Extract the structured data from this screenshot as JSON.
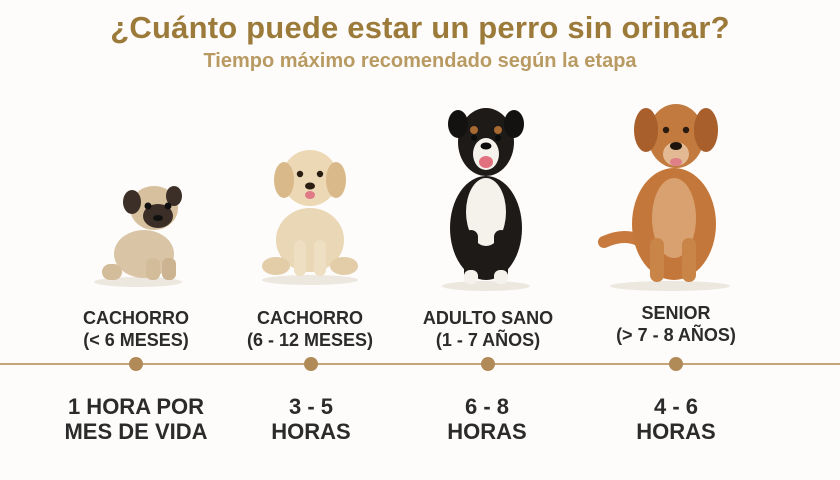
{
  "title": "¿Cuánto puede estar un perro sin orinar?",
  "subtitle": "Tiempo máximo recomendado según la etapa",
  "colors": {
    "title": "#9b7a3a",
    "subtitle": "#b89a62",
    "timeline": "#c4a57a",
    "dot": "#b08a57"
  },
  "stages": [
    {
      "label_line1": "CACHORRO",
      "label_line2": "(< 6 MESES)",
      "value_line1": "1 HORA POR",
      "value_line2": "MES DE VIDA",
      "image": "pug-puppy"
    },
    {
      "label_line1": "CACHORRO",
      "label_line2": "(6 - 12 MESES)",
      "value_line1": "3 - 5",
      "value_line2": "HORAS",
      "image": "golden-puppy"
    },
    {
      "label_line1": "ADULTO SANO",
      "label_line2": "(1 - 7 AÑOS)",
      "value_line1": "6 - 8",
      "value_line2": "HORAS",
      "image": "bernese-adult"
    },
    {
      "label_line1": "SENIOR",
      "label_line2": "(> 7 - 8 AÑOS)",
      "value_line1": "4 - 6",
      "value_line2": "HORAS",
      "image": "golden-senior"
    }
  ]
}
